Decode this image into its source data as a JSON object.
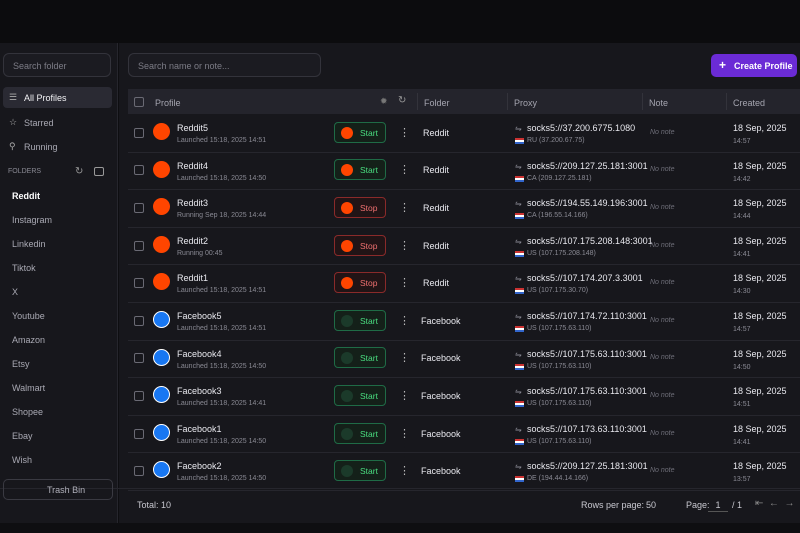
{
  "sidebar": {
    "search_placeholder": "Search folder",
    "nav": [
      "All Profiles",
      "Starred",
      "Running"
    ],
    "folders_label": "FOLDERS",
    "folders": [
      "Reddit",
      "Instagram",
      "Linkedin",
      "Tiktok",
      "X",
      "Youtube",
      "Amazon",
      "Etsy",
      "Walmart",
      "Shopee",
      "Ebay",
      "Wish"
    ],
    "trash": "Trash Bin"
  },
  "header": {
    "search_placeholder": "Search name or note...",
    "create_button": "Create Profile"
  },
  "table": {
    "columns": [
      "Profile",
      "Folder",
      "Proxy",
      "Note",
      "Created"
    ],
    "rows": [
      {
        "name": "Reddit5",
        "status": "Launched 15:18, 2025 14:51",
        "action": "Start",
        "folder": "Reddit",
        "proxy": "socks5://37.200.6775.1080",
        "location": "RU (37.200.67.75)",
        "note": "No note",
        "date": "18 Sep, 2025",
        "time": "14:57"
      },
      {
        "name": "Reddit4",
        "status": "Launched 15:18, 2025 14:50",
        "action": "Start",
        "folder": "Reddit",
        "proxy": "socks5://209.127.25.181:3001",
        "location": "CA (209.127.25.181)",
        "note": "No note",
        "date": "18 Sep, 2025",
        "time": "14:42"
      },
      {
        "name": "Reddit3",
        "status": "Running Sep 18, 2025 14:44",
        "action": "Stop",
        "folder": "Reddit",
        "proxy": "socks5://194.55.149.196:3001",
        "location": "CA (196.55.14.166)",
        "note": "No note",
        "date": "18 Sep, 2025",
        "time": "14:44"
      },
      {
        "name": "Reddit2",
        "status": "Running 00:45",
        "action": "Stop",
        "folder": "Reddit",
        "proxy": "socks5://107.175.208.148:3001",
        "location": "US (107.175.208.148)",
        "note": "No note",
        "date": "18 Sep, 2025",
        "time": "14:41"
      },
      {
        "name": "Reddit1",
        "status": "Launched 15:18, 2025 14:51",
        "action": "Stop",
        "folder": "Reddit",
        "proxy": "socks5://107.174.207.3.3001",
        "location": "US (107.175.30.70)",
        "note": "No note",
        "date": "18 Sep, 2025",
        "time": "14:30"
      },
      {
        "name": "Facebook5",
        "status": "Launched 15:18, 2025 14:51",
        "action": "Start",
        "folder": "Facebook",
        "proxy": "socks5://107.174.72.110:3001",
        "location": "US (107.175.63.110)",
        "note": "No note",
        "date": "18 Sep, 2025",
        "time": "14:57"
      },
      {
        "name": "Facebook4",
        "status": "Launched 15:18, 2025 14:50",
        "action": "Start",
        "folder": "Facebook",
        "proxy": "socks5://107.175.63.110:3001",
        "location": "US (107.175.63.110)",
        "note": "No note",
        "date": "18 Sep, 2025",
        "time": "14:50"
      },
      {
        "name": "Facebook3",
        "status": "Launched 15:18, 2025 14:41",
        "action": "Start",
        "folder": "Facebook",
        "proxy": "socks5://107.175.63.110:3001",
        "location": "US (107.175.63.110)",
        "note": "No note",
        "date": "18 Sep, 2025",
        "time": "14:51"
      },
      {
        "name": "Facebook1",
        "status": "Launched 15:18, 2025 14:50",
        "action": "Start",
        "folder": "Facebook",
        "proxy": "socks5://107.173.63.110:3001",
        "location": "US (107.175.63.110)",
        "note": "No note",
        "date": "18 Sep, 2025",
        "time": "14:41"
      },
      {
        "name": "Facebook2",
        "status": "Launched 15:18, 2025 14:50",
        "action": "Start",
        "folder": "Facebook",
        "proxy": "socks5://209.127.25.181:3001",
        "location": "DE (194.44.14.166)",
        "note": "No note",
        "date": "18 Sep, 2025",
        "time": "13:57"
      }
    ]
  },
  "footer": {
    "total": "Total: 10",
    "rows_label": "Rows per page:",
    "rows_value": "50",
    "page_label": "Page:",
    "page_value": "1",
    "page_total": "/ 1"
  }
}
